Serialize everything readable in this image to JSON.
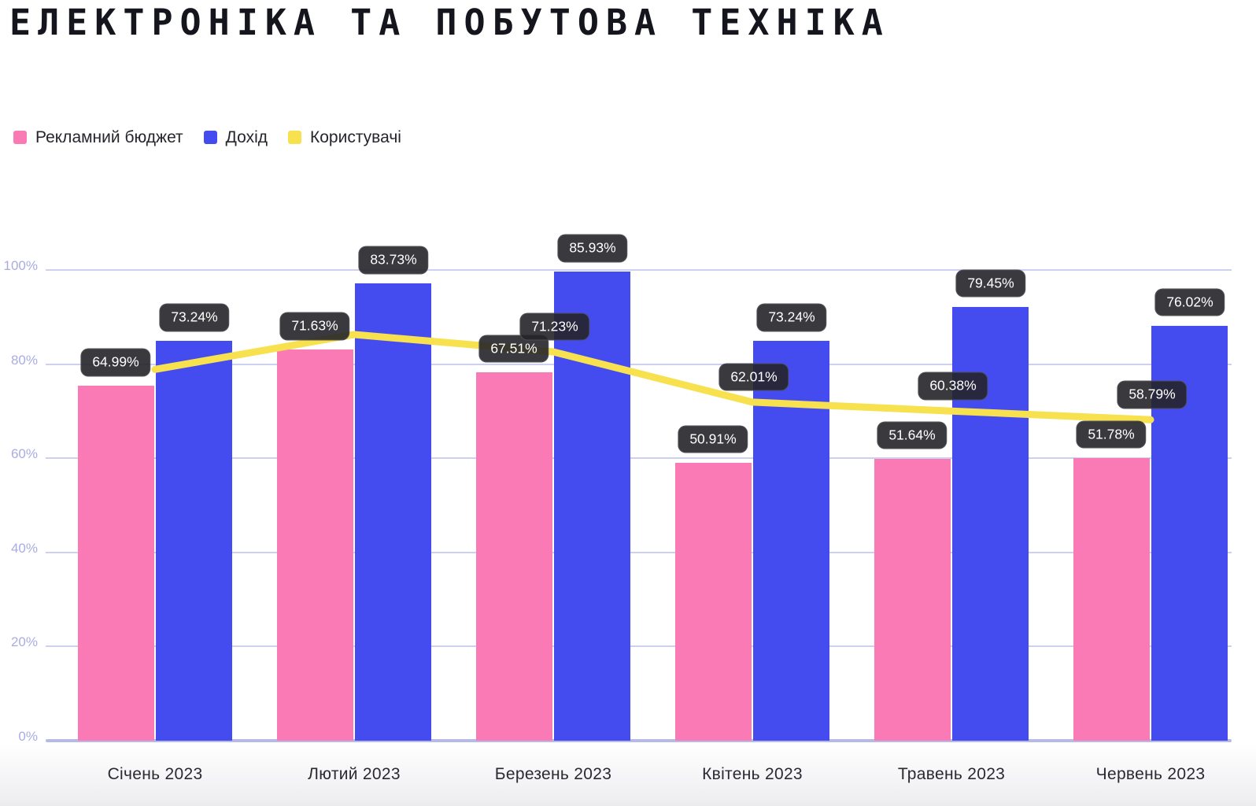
{
  "title": "ЕЛЕКТРОНІКА ТА ПОБУТОВА ТЕХНІКА",
  "legend": [
    {
      "label": "Рекламний бюджет",
      "color": "#FA7AB6"
    },
    {
      "label": "Дохід",
      "color": "#444CEF"
    },
    {
      "label": "Користувачі",
      "color": "#F7E14E"
    }
  ],
  "y_axis": {
    "ticks": [
      "100%",
      "80%",
      "60%",
      "40%",
      "20%",
      "0%"
    ]
  },
  "chart_data": {
    "type": "bar",
    "title": "ЕЛЕКТРОНІКА ТА ПОБУТОВА ТЕХНІКА",
    "categories": [
      "Січень 2023",
      "Лютий 2023",
      "Березень 2023",
      "Квітень 2023",
      "Травень 2023",
      "Червень 2023"
    ],
    "series": [
      {
        "name": "Рекламний бюджет",
        "type": "bar",
        "color": "#FA7AB6",
        "values": [
          64.99,
          71.63,
          67.51,
          50.91,
          51.64,
          51.78
        ],
        "labels": [
          "64.99%",
          "71.63%",
          "67.51%",
          "50.91%",
          "51.64%",
          "51.78%"
        ]
      },
      {
        "name": "Дохід",
        "type": "bar",
        "color": "#444CEF",
        "values": [
          73.24,
          83.73,
          85.93,
          73.24,
          79.45,
          76.02
        ],
        "labels": [
          "73.24%",
          "83.73%",
          "85.93%",
          "73.24%",
          "79.45%",
          "76.02%"
        ]
      },
      {
        "name": "Користувачі",
        "type": "line",
        "color": "#F7E14E",
        "values": [
          68.0,
          74.4,
          71.23,
          62.01,
          60.38,
          58.79
        ],
        "labels": [
          null,
          null,
          "71.23%",
          "62.01%",
          "60.38%",
          "58.79%"
        ]
      }
    ],
    "ylim": [
      0,
      100
    ],
    "grid": true,
    "legend_position": "top-left",
    "note": "bars drawn scaled so the max value (85.93%) reaches the 100% gridline"
  }
}
